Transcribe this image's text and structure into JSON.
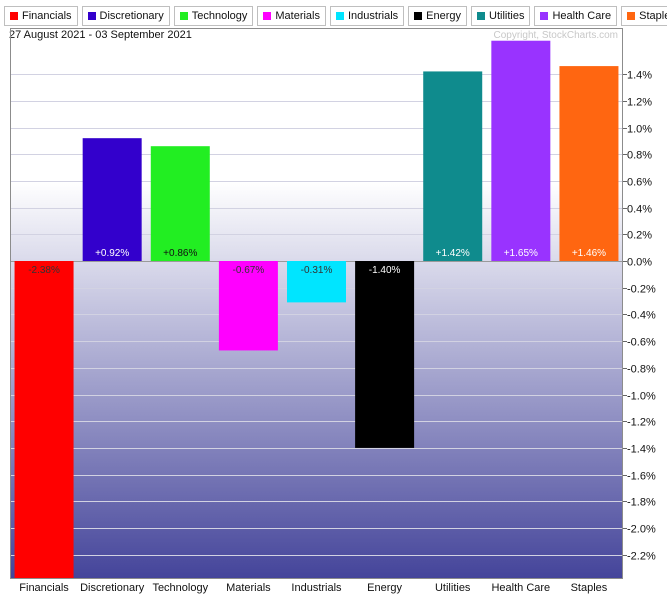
{
  "date_range": "27 August 2021 - 03 September 2021",
  "copyright": "Copyright, StockCharts.com",
  "chart_data": {
    "type": "bar",
    "categories": [
      "Financials",
      "Discretionary",
      "Technology",
      "Materials",
      "Industrials",
      "Energy",
      "Utilities",
      "Health Care",
      "Staples"
    ],
    "values": [
      -2.38,
      0.92,
      0.86,
      -0.67,
      -0.31,
      -1.4,
      1.42,
      1.65,
      1.46
    ],
    "data_labels": [
      "-2.38%",
      "+0.92%",
      "+0.86%",
      "-0.67%",
      "-0.31%",
      "-1.40%",
      "+1.42%",
      "+1.65%",
      "+1.46%"
    ],
    "colors": [
      "#ff0000",
      "#3300cc",
      "#22ee22",
      "#ff00ff",
      "#00e5ff",
      "#000000",
      "#0f8b8d",
      "#9933ff",
      "#ff6611"
    ],
    "ylim": [
      -2.38,
      1.65
    ],
    "yticks": [
      1.4,
      1.2,
      1.0,
      0.8,
      0.6,
      0.4,
      0.2,
      0.0,
      -0.2,
      -0.4,
      -0.6,
      -0.8,
      -1.0,
      -1.2,
      -1.4,
      -1.6,
      -1.8,
      -2.0,
      -2.2
    ],
    "ytick_labels": [
      "1.4%",
      "1.2%",
      "1.0%",
      "0.8%",
      "0.6%",
      "0.4%",
      "0.2%",
      "0.0%",
      "-0.2%",
      "-0.4%",
      "-0.6%",
      "-0.8%",
      "-1.0%",
      "-1.2%",
      "-1.4%",
      "-1.6%",
      "-1.8%",
      "-2.0%",
      "-2.2%"
    ],
    "grid": true,
    "legend_position": "top-left",
    "background_gradient": [
      "#ffffff",
      "#44449a"
    ]
  }
}
